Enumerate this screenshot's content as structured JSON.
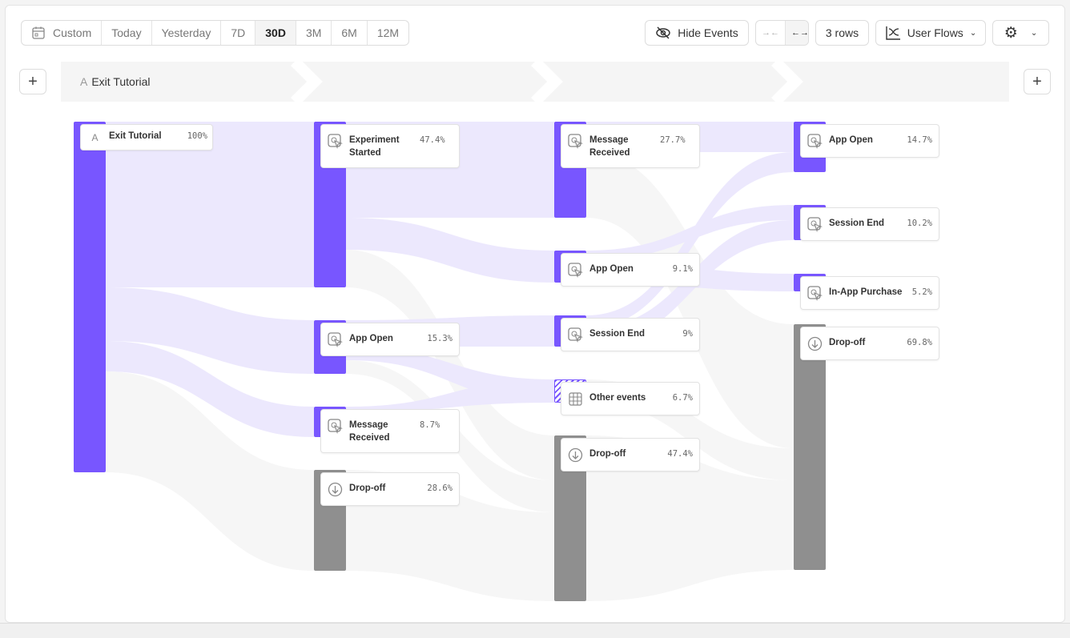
{
  "toolbar": {
    "date_ranges": [
      {
        "label": "Custom",
        "icon": "calendar-icon"
      },
      {
        "label": "Today"
      },
      {
        "label": "Yesterday"
      },
      {
        "label": "7D"
      },
      {
        "label": "30D",
        "selected": true
      },
      {
        "label": "3M"
      },
      {
        "label": "6M"
      },
      {
        "label": "12M"
      }
    ],
    "hide_events": "Hide Events",
    "rows": "3 rows",
    "view": "User Flows"
  },
  "steps": {
    "first": "Exit Tutorial",
    "first_icon": "A"
  },
  "colors": {
    "event": "#7856ff",
    "dropoff": "#8f8f8f",
    "link": "#ece8fd"
  },
  "columns": [
    [
      {
        "name": "Exit Tutorial",
        "pct": "100%",
        "icon": "A"
      }
    ],
    [
      {
        "name": "Experiment Started",
        "pct": "47.4%"
      },
      {
        "name": "App Open",
        "pct": "15.3%"
      },
      {
        "name": "Message Received",
        "pct": "8.7%"
      },
      {
        "name": "Drop-off",
        "pct": "28.6%"
      }
    ],
    [
      {
        "name": "Message Received",
        "pct": "27.7%"
      },
      {
        "name": "App Open",
        "pct": "9.1%"
      },
      {
        "name": "Session End",
        "pct": "9%"
      },
      {
        "name": "Other events",
        "pct": "6.7%"
      },
      {
        "name": "Drop-off",
        "pct": "47.4%"
      }
    ],
    [
      {
        "name": "App Open",
        "pct": "14.7%"
      },
      {
        "name": "Session End",
        "pct": "10.2%"
      },
      {
        "name": "In-App Purchase",
        "pct": "5.2%"
      },
      {
        "name": "Drop-off",
        "pct": "69.8%"
      }
    ]
  ]
}
